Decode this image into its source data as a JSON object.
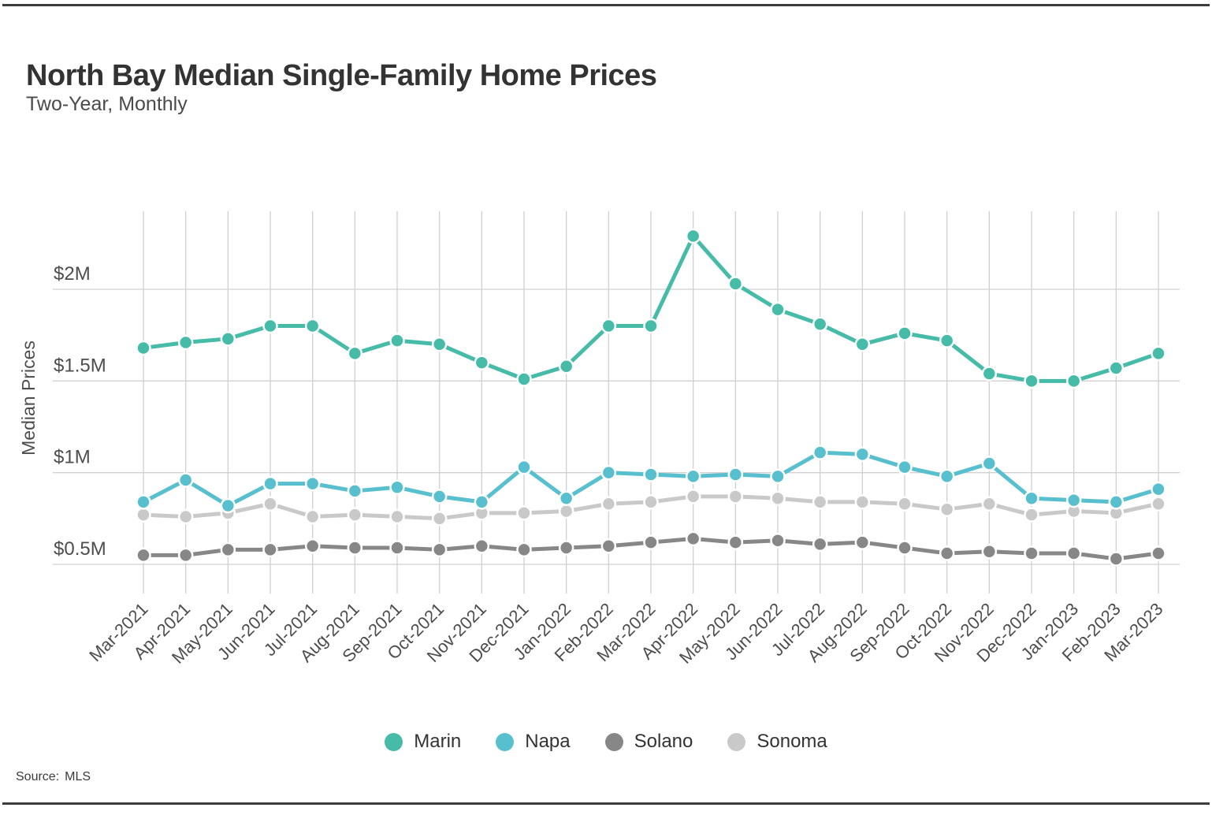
{
  "page": {
    "title": "North Bay Median Single-Family Home Prices",
    "subtitle": "Two-Year, Monthly",
    "source_label": "Source:",
    "source_value": "MLS"
  },
  "colors": {
    "frame_rule": "#3c3c3c",
    "grid_line": "#d0d0d0",
    "axis_text": "#4d4d4d",
    "title_text": "#333333",
    "subtitle_text": "#4a4a4a"
  },
  "chart_data": {
    "type": "line",
    "title": "North Bay Median Single-Family Home Prices",
    "subtitle": "Two-Year, Monthly",
    "xlabel": "",
    "ylabel": "Median Prices",
    "unit": "million USD",
    "grid": true,
    "legend_position": "bottom",
    "ylim": [
      0.35,
      2.42
    ],
    "yticks": [
      {
        "value": 0.5,
        "label": "$0.5M"
      },
      {
        "value": 1.0,
        "label": "$1M"
      },
      {
        "value": 1.5,
        "label": "$1.5M"
      },
      {
        "value": 2.0,
        "label": "$2M"
      }
    ],
    "categories": [
      "Mar-2021",
      "Apr-2021",
      "May-2021",
      "Jun-2021",
      "Jul-2021",
      "Aug-2021",
      "Sep-2021",
      "Oct-2021",
      "Nov-2021",
      "Dec-2021",
      "Jan-2022",
      "Feb-2022",
      "Mar-2022",
      "Apr-2022",
      "May-2022",
      "Jun-2022",
      "Jul-2022",
      "Aug-2022",
      "Sep-2022",
      "Oct-2022",
      "Nov-2022",
      "Dec-2022",
      "Jan-2023",
      "Feb-2023",
      "Mar-2023"
    ],
    "series": [
      {
        "name": "Marin",
        "color": "#45bba8",
        "values": [
          1.68,
          1.71,
          1.73,
          1.8,
          1.8,
          1.65,
          1.72,
          1.7,
          1.6,
          1.51,
          1.58,
          1.8,
          1.8,
          2.29,
          2.03,
          1.89,
          1.81,
          1.7,
          1.76,
          1.72,
          1.54,
          1.5,
          1.5,
          1.57,
          1.65
        ]
      },
      {
        "name": "Napa",
        "color": "#58bfce",
        "values": [
          0.84,
          0.96,
          0.82,
          0.94,
          0.94,
          0.9,
          0.92,
          0.87,
          0.84,
          1.03,
          0.86,
          1.0,
          0.99,
          0.98,
          0.99,
          0.98,
          1.11,
          1.1,
          1.03,
          0.98,
          1.05,
          0.86,
          0.85,
          0.84,
          0.91
        ]
      },
      {
        "name": "Solano",
        "color": "#878787",
        "values": [
          0.55,
          0.55,
          0.58,
          0.58,
          0.6,
          0.59,
          0.59,
          0.58,
          0.6,
          0.58,
          0.59,
          0.6,
          0.62,
          0.64,
          0.62,
          0.63,
          0.61,
          0.62,
          0.59,
          0.56,
          0.57,
          0.56,
          0.56,
          0.53,
          0.56
        ]
      },
      {
        "name": "Sonoma",
        "color": "#c9c9c9",
        "values": [
          0.77,
          0.76,
          0.78,
          0.83,
          0.76,
          0.77,
          0.76,
          0.75,
          0.78,
          0.78,
          0.79,
          0.83,
          0.84,
          0.87,
          0.87,
          0.86,
          0.84,
          0.84,
          0.83,
          0.8,
          0.83,
          0.77,
          0.79,
          0.78,
          0.83
        ]
      }
    ]
  }
}
